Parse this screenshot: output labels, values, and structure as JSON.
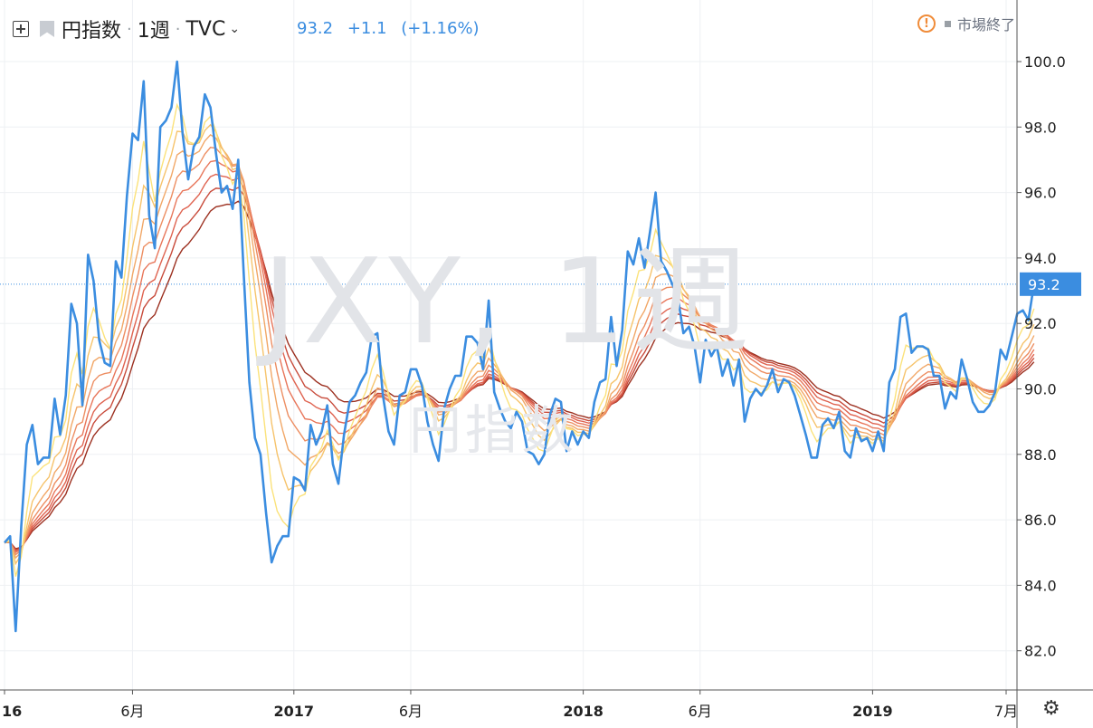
{
  "header": {
    "symbol_name": "円指数",
    "interval": "1週",
    "exchange": "TVC",
    "sep": "·"
  },
  "quote": {
    "last": "93.2",
    "change": "+1.1",
    "change_pct": "(+1.16%)"
  },
  "status": {
    "warning_glyph": "!",
    "label": "市場終了"
  },
  "watermark": {
    "symbol": "JXY, 1週",
    "name": "円指数"
  },
  "colors": {
    "price_line": "#3b8de0",
    "ribbon": [
      "#fbe27a",
      "#f6c36b",
      "#f1a767",
      "#ed8e62",
      "#e8765a",
      "#df6350",
      "#c84b3b",
      "#9c3020"
    ],
    "grid": "#eef0f3",
    "crosshair": "#3b8de0"
  },
  "chart_data": {
    "type": "line",
    "title": "円指数",
    "ylim": [
      80.6,
      101.0
    ],
    "y_ticks": [
      82.0,
      84.0,
      86.0,
      88.0,
      90.0,
      92.0,
      94.0,
      96.0,
      98.0,
      100.0
    ],
    "y_tick_labels": [
      "82.0",
      "84.0",
      "86.0",
      "88.0",
      "90.0",
      "92.0",
      "94.0",
      "96.0",
      "98.0",
      "100.0"
    ],
    "x_ticks": [
      {
        "label": "16",
        "week": 0,
        "bold": true
      },
      {
        "label": "6月",
        "week": 23,
        "bold": false
      },
      {
        "label": "2017",
        "week": 52,
        "bold": true
      },
      {
        "label": "6月",
        "week": 73,
        "bold": false
      },
      {
        "label": "2018",
        "week": 104,
        "bold": true
      },
      {
        "label": "6月",
        "week": 125,
        "bold": false
      },
      {
        "label": "2019",
        "week": 156,
        "bold": true
      },
      {
        "label": "7月",
        "week": 180,
        "bold": false
      }
    ],
    "last_value": 93.2,
    "last_value_label": "93.2",
    "grid": true,
    "series": [
      {
        "kind": "price",
        "values": [
          85.3,
          85.5,
          82.6,
          85.8,
          88.3,
          88.9,
          87.7,
          87.9,
          87.9,
          89.7,
          88.6,
          89.8,
          92.6,
          92.0,
          89.5,
          94.1,
          93.3,
          91.5,
          90.8,
          90.7,
          93.9,
          93.4,
          95.9,
          97.8,
          97.6,
          99.4,
          95.3,
          94.3,
          98.0,
          98.2,
          98.6,
          100.0,
          97.8,
          96.4,
          97.4,
          97.7,
          99.0,
          98.6,
          97.2,
          96.0,
          96.2,
          95.5,
          97.0,
          93.5,
          90.2,
          88.5,
          88.0,
          86.2,
          84.7,
          85.2,
          85.5,
          85.5,
          87.3,
          87.2,
          86.9,
          88.9,
          88.3,
          88.7,
          89.5,
          87.7,
          87.1,
          88.6,
          89.6,
          89.8,
          90.2,
          90.5,
          91.6,
          91.7,
          89.8,
          88.7,
          88.3,
          89.8,
          89.9,
          90.6,
          90.6,
          90.1,
          89.0,
          88.3,
          87.8,
          89.4,
          90.0,
          90.4,
          90.4,
          91.6,
          91.6,
          91.4,
          90.6,
          92.7,
          89.9,
          89.4,
          89.0,
          88.8,
          89.3,
          89.0,
          88.1,
          88.0,
          87.7,
          88.0,
          89.2,
          89.7,
          89.6,
          88.1,
          88.7,
          88.3,
          88.7,
          88.5,
          89.6,
          90.2,
          90.3,
          92.2,
          90.7,
          91.8,
          94.2,
          93.8,
          94.6,
          93.7,
          94.8,
          96.0,
          93.9,
          93.6,
          93.2,
          92.8,
          91.7,
          91.9,
          91.3,
          90.2,
          91.5,
          91.0,
          91.3,
          90.4,
          90.9,
          90.1,
          90.9,
          89.0,
          89.7,
          90.0,
          89.8,
          90.1,
          90.6,
          89.9,
          90.3,
          90.2,
          89.8,
          89.2,
          88.6,
          87.9,
          87.9,
          88.9,
          89.1,
          88.8,
          89.3,
          88.1,
          87.9,
          88.8,
          88.4,
          88.5,
          88.1,
          88.7,
          88.1,
          90.2,
          90.6,
          92.2,
          92.3,
          91.1,
          91.3,
          91.3,
          91.2,
          90.4,
          90.4,
          89.4,
          89.9,
          89.7,
          90.9,
          90.3,
          89.6,
          89.3,
          89.3,
          89.5,
          89.9,
          91.2,
          90.9,
          91.6,
          92.3,
          92.4,
          92.1,
          93.2
        ]
      },
      {
        "kind": "ema",
        "period": 4
      },
      {
        "kind": "ema",
        "period": 7
      },
      {
        "kind": "ema",
        "period": 10
      },
      {
        "kind": "ema",
        "period": 13
      },
      {
        "kind": "ema",
        "period": 16
      },
      {
        "kind": "ema",
        "period": 19
      },
      {
        "kind": "ema",
        "period": 22
      },
      {
        "kind": "ema",
        "period": 26
      }
    ]
  }
}
